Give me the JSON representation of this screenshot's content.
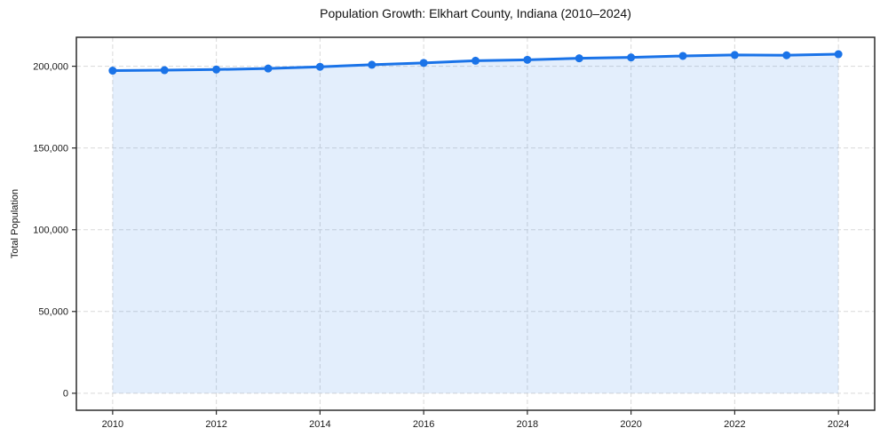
{
  "chart_data": {
    "type": "line",
    "title": "Population Growth: Elkhart County, Indiana (2010–2024)",
    "xlabel": "",
    "ylabel": "Total Population",
    "x": [
      2010,
      2011,
      2012,
      2013,
      2014,
      2015,
      2016,
      2017,
      2018,
      2019,
      2020,
      2021,
      2022,
      2023,
      2024
    ],
    "series": [
      {
        "name": "Total Population",
        "values": [
          197300,
          197600,
          198000,
          198600,
          199650,
          200900,
          202050,
          203350,
          203950,
          204850,
          205400,
          206300,
          206900,
          206700,
          207350
        ]
      }
    ],
    "x_ticks": [
      2010,
      2012,
      2014,
      2016,
      2018,
      2020,
      2022,
      2024
    ],
    "x_tick_labels": [
      "2010",
      "2012",
      "2014",
      "2016",
      "2018",
      "2020",
      "2022",
      "2024"
    ],
    "y_ticks": [
      0,
      50000,
      100000,
      150000,
      200000
    ],
    "y_tick_labels": [
      "0",
      "50,000",
      "100,000",
      "150,000",
      "200,000"
    ],
    "xlim": [
      2009.3,
      2024.7
    ],
    "ylim": [
      -10400,
      217700
    ],
    "grid": true,
    "grid_style": "dashed",
    "legend": "none",
    "marker": "circle",
    "area_fill_to_zero": true,
    "colors": {
      "line": "#1a73e8",
      "fill": "#1a73e8",
      "fill_opacity": 0.12,
      "grid": "#d9d9d9",
      "spine": "#2b2b2b",
      "text": "#191919"
    }
  }
}
